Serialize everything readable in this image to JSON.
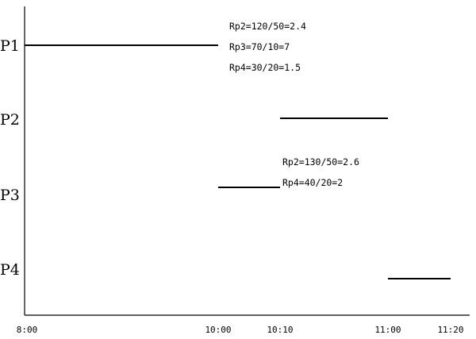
{
  "chart_data": {
    "type": "gantt",
    "title": "",
    "xlabel": "",
    "ylabel": "",
    "grid": false,
    "x_ticks": [
      "8:00",
      "10:00",
      "10:10",
      "11:00",
      "11:20"
    ],
    "xlim": [
      "8:00",
      "11:20"
    ],
    "rows": [
      "P1",
      "P2",
      "P3",
      "P4"
    ],
    "tasks": [
      {
        "process": "P1",
        "start": "8:00",
        "end": "10:00"
      },
      {
        "process": "P2",
        "start": "10:10",
        "end": "11:00"
      },
      {
        "process": "P3",
        "start": "10:00",
        "end": "10:10"
      },
      {
        "process": "P4",
        "start": "11:00",
        "end": "11:20"
      }
    ],
    "annotations": [
      {
        "row": "P1",
        "time": "10:00",
        "lines": [
          "Rp2=120/50=2.4",
          "Rp3=70/10=7",
          "Rp4=30/20=1.5"
        ]
      },
      {
        "row": "P3",
        "time": "10:10",
        "lines": [
          "Rp2=130/50=2.6",
          "Rp4=40/20=2"
        ]
      }
    ]
  },
  "colors": {
    "bar": "#000000",
    "axis": "#000000",
    "background": "#ffffff"
  }
}
